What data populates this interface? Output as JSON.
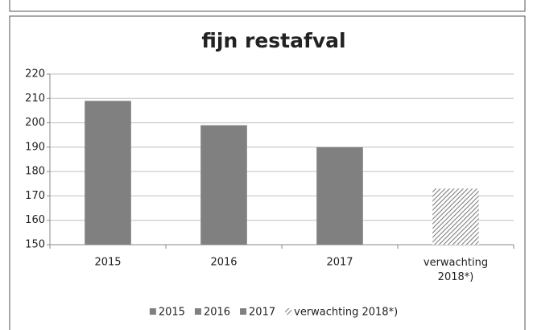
{
  "chart_data": {
    "type": "bar",
    "title": "fijn restafval",
    "categories": [
      "2015",
      "2016",
      "2017",
      "verwachting 2018*)"
    ],
    "values": [
      209,
      199,
      190,
      173
    ],
    "colors": [
      "#808080",
      "#808080",
      "#808080",
      "#808080"
    ],
    "hatched": [
      false,
      false,
      false,
      true
    ],
    "ylim": [
      150,
      220
    ],
    "yticks": [
      150,
      160,
      170,
      180,
      190,
      200,
      210,
      220
    ],
    "grid": true,
    "legend": "bottom"
  }
}
